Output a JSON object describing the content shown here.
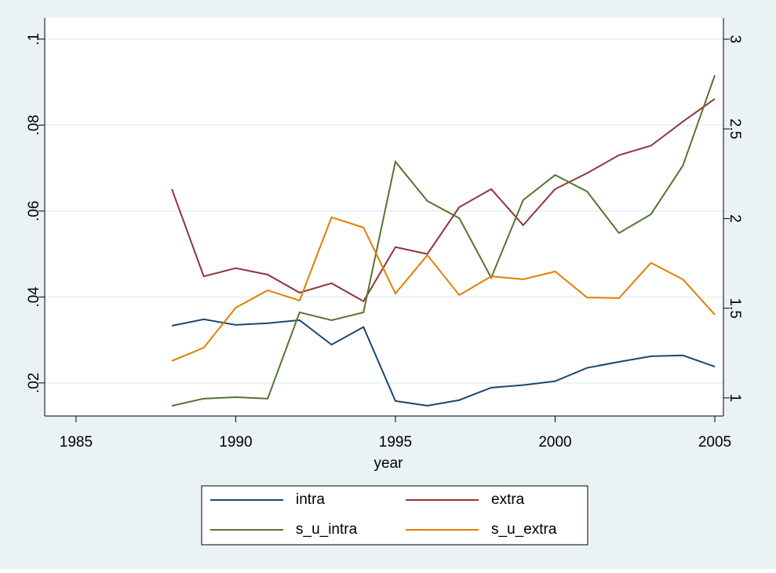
{
  "chart_data": {
    "type": "line",
    "x_label": "year",
    "x": [
      1988,
      1989,
      1990,
      1991,
      1992,
      1993,
      1994,
      1995,
      1996,
      1997,
      1998,
      1999,
      2000,
      2001,
      2002,
      2003,
      2004,
      2005
    ],
    "series": [
      {
        "name": "intra",
        "color": "#1a476f",
        "values": [
          0.0333,
          0.0348,
          0.0335,
          0.0339,
          0.0346,
          0.0289,
          0.033,
          0.0158,
          0.0147,
          0.016,
          0.0189,
          0.0195,
          0.0204,
          0.0235,
          0.0249,
          0.0262,
          0.0264,
          0.0238
        ]
      },
      {
        "name": "extra",
        "color": "#90353b",
        "values": [
          0.0651,
          0.0448,
          0.0467,
          0.0452,
          0.041,
          0.0432,
          0.039,
          0.0516,
          0.05,
          0.0609,
          0.0651,
          0.0567,
          0.0651,
          0.0688,
          0.073,
          0.0752,
          0.0808,
          0.0861
        ]
      },
      {
        "name": "s_u_intra",
        "color": "#55752f",
        "axis": "y2",
        "values": [
          0.956,
          0.996,
          1.004,
          0.996,
          1.477,
          1.433,
          1.477,
          2.317,
          2.098,
          2.002,
          1.67,
          2.103,
          2.243,
          2.151,
          1.919,
          2.024,
          2.295,
          2.799
        ]
      },
      {
        "name": "s_u_extra",
        "color": "#e37e00",
        "axis": "y2",
        "values": [
          1.206,
          1.28,
          1.503,
          1.6,
          1.543,
          2.007,
          1.95,
          1.582,
          1.796,
          1.573,
          1.678,
          1.661,
          1.705,
          1.56,
          1.556,
          1.753,
          1.661,
          1.464
        ]
      }
    ],
    "xlim": [
      1984.02,
      2005.27
    ],
    "xticks": [
      1985,
      1990,
      1995,
      2000,
      2005
    ],
    "ylim": [
      0.0123,
      0.1049
    ],
    "yticks": [
      {
        "value": 0.02,
        "label": ".02"
      },
      {
        "value": 0.04,
        "label": ".04"
      },
      {
        "value": 0.06,
        "label": ".06"
      },
      {
        "value": 0.08,
        "label": ".08"
      },
      {
        "value": 0.1,
        "label": ".1"
      }
    ],
    "y2lim": [
      0.899,
      3.118
    ],
    "y2ticks": [
      1,
      1.5,
      2,
      2.5,
      3
    ],
    "grid": true,
    "legend": "bottom"
  }
}
